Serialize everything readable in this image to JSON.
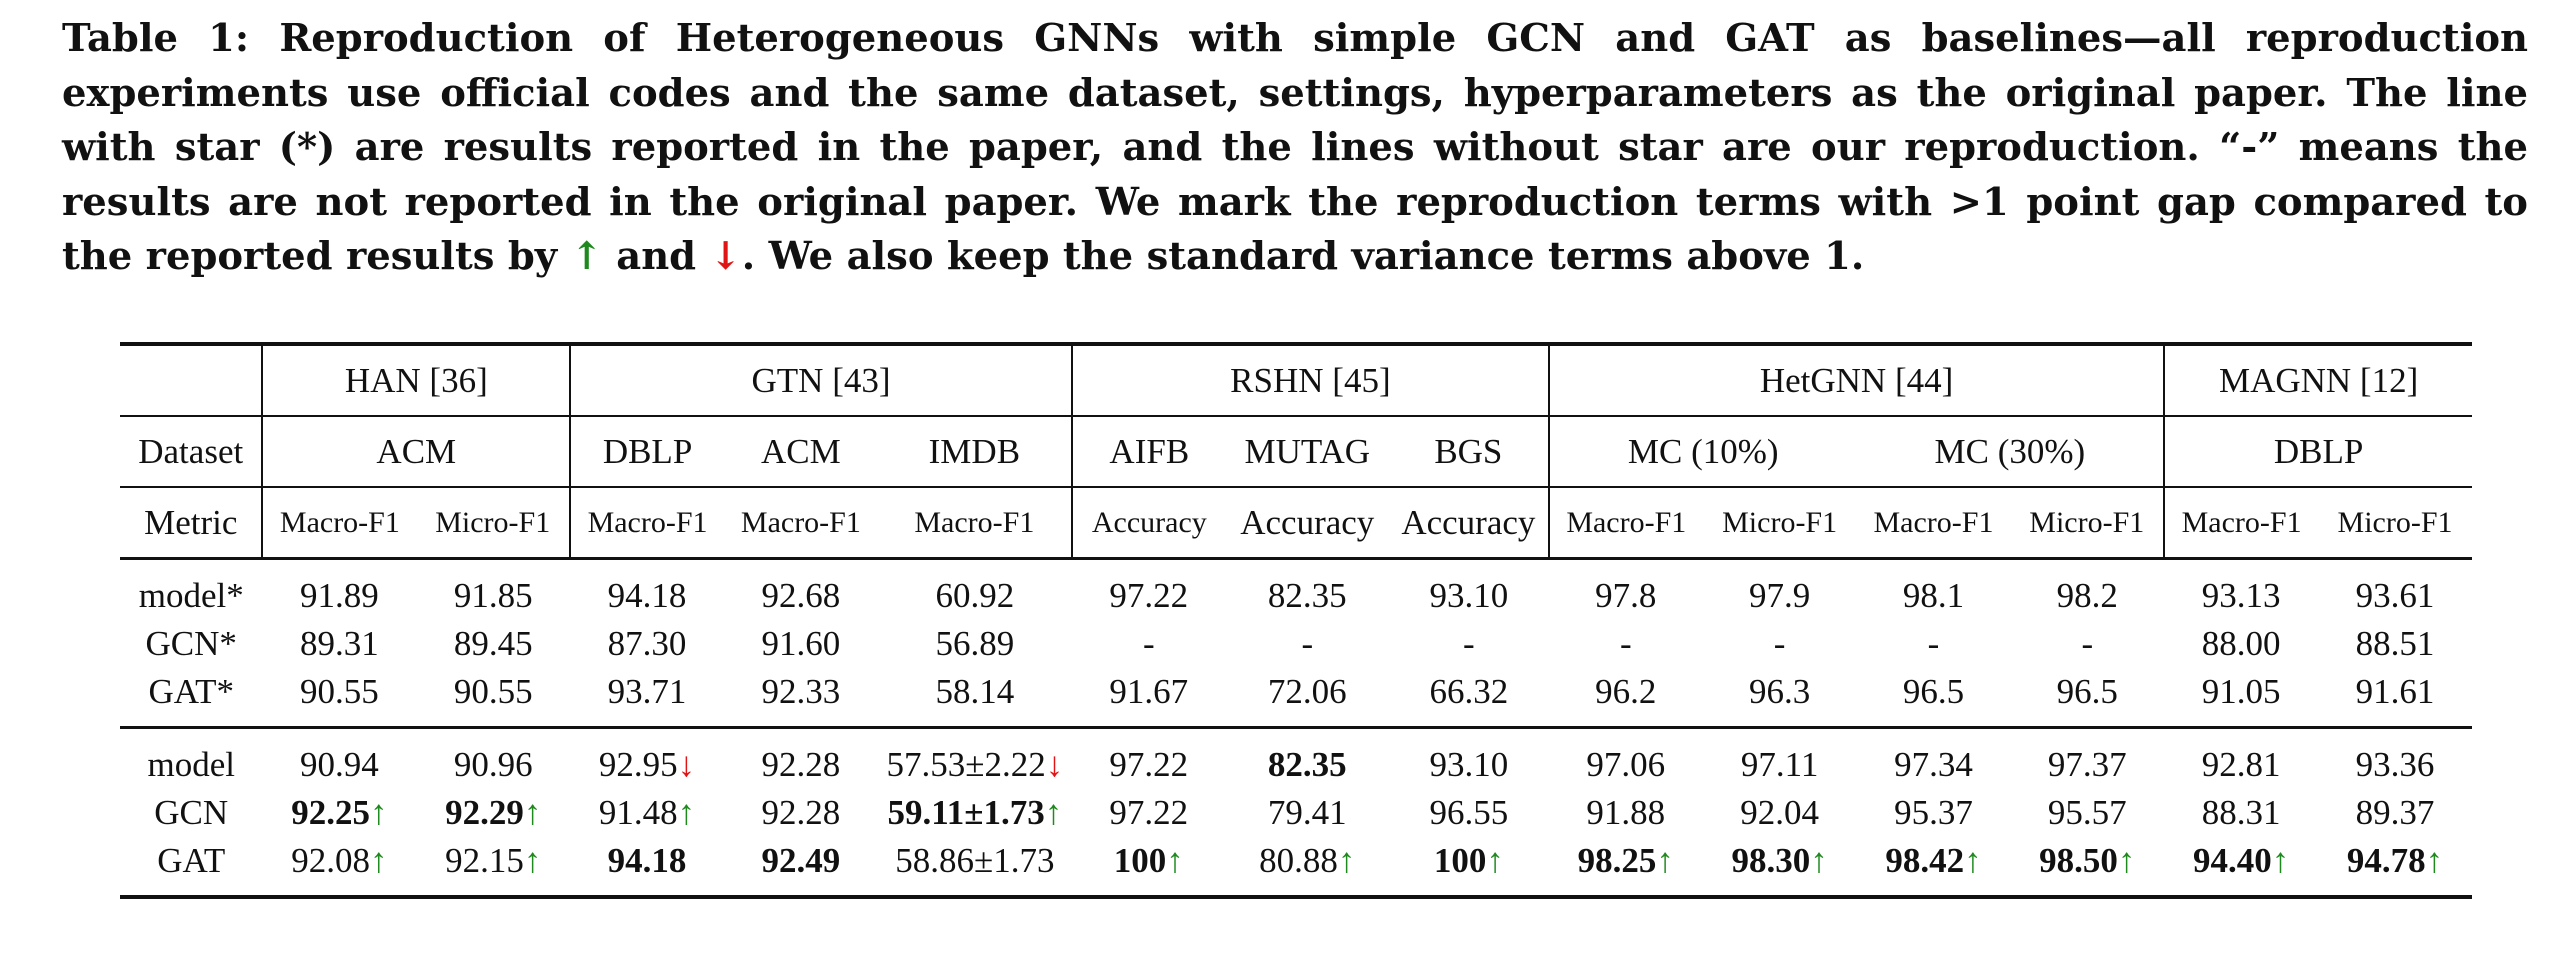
{
  "caption": {
    "part1": "Table 1: Reproduction of Heterogeneous GNNs with simple GCN and GAT as baselines—all reproduction experiments use official codes and the same dataset, settings, hyperparameters as the original paper. The line with star (*) are results reported in the paper, and the lines without star are our reproduction. “-” means the results are not reported in the original paper. We mark the reproduction terms with >1 point gap compared to the reported results by ",
    "up_symbol": "↑",
    "and": " and ",
    "down_symbol": "↓",
    "part2": ". We also keep the standard variance terms above 1."
  },
  "table": {
    "header_models": [
      "HAN [36]",
      "GTN [43]",
      "RSHN [45]",
      "HetGNN [44]",
      "MAGNN [12]"
    ],
    "dataset_label": "Dataset",
    "datasets": [
      "ACM",
      "DBLP",
      "ACM",
      "IMDB",
      "AIFB",
      "MUTAG",
      "BGS",
      "MC (10%)",
      "MC (30%)",
      "DBLP"
    ],
    "metric_label": "Metric",
    "metrics": [
      "Macro-F1",
      "Micro-F1",
      "Macro-F1",
      "Macro-F1",
      "Macro-F1",
      "Accuracy",
      "Accuracy",
      "Accuracy",
      "Macro-F1",
      "Micro-F1",
      "Macro-F1",
      "Micro-F1",
      "Macro-F1",
      "Micro-F1"
    ],
    "reported": {
      "model": {
        "label": "model*",
        "values": [
          "91.89",
          "91.85",
          "94.18",
          "92.68",
          "60.92",
          "97.22",
          "82.35",
          "93.10",
          "97.8",
          "97.9",
          "98.1",
          "98.2",
          "93.13",
          "93.61"
        ]
      },
      "gcn": {
        "label": "GCN*",
        "values": [
          "89.31",
          "89.45",
          "87.30",
          "91.60",
          "56.89",
          "-",
          "-",
          "-",
          "-",
          "-",
          "-",
          "-",
          "88.00",
          "88.51"
        ]
      },
      "gat": {
        "label": "GAT*",
        "values": [
          "90.55",
          "90.55",
          "93.71",
          "92.33",
          "58.14",
          "91.67",
          "72.06",
          "66.32",
          "96.2",
          "96.3",
          "96.5",
          "96.5",
          "91.05",
          "91.61"
        ]
      }
    },
    "reproduced": {
      "model": {
        "label": "model",
        "values": [
          "90.94",
          "90.96",
          "92.95",
          "92.28",
          "57.53±2.22",
          "97.22",
          "82.35",
          "93.10",
          "97.06",
          "97.11",
          "97.34",
          "97.37",
          "92.81",
          "93.36"
        ]
      },
      "gcn": {
        "label": "GCN",
        "values": [
          "92.25",
          "92.29",
          "91.48",
          "92.28",
          "59.11±1.73",
          "97.22",
          "79.41",
          "96.55",
          "91.88",
          "92.04",
          "95.37",
          "95.57",
          "88.31",
          "89.37"
        ]
      },
      "gat": {
        "label": "GAT",
        "values": [
          "92.08",
          "92.15",
          "94.18",
          "92.49",
          "58.86±1.73",
          "100",
          "80.88",
          "100",
          "98.25",
          "98.30",
          "98.42",
          "98.50",
          "94.40",
          "94.78"
        ]
      }
    },
    "arrow_up": "↑",
    "arrow_down": "↓"
  },
  "colors": {
    "up": "#1e8a1e",
    "down": "#e01414",
    "text": "#111111"
  }
}
